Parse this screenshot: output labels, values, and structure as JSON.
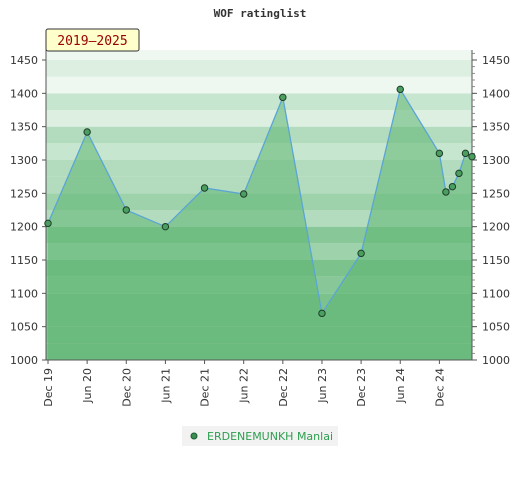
{
  "chart_data": {
    "type": "area",
    "title": "WOF ratinglist",
    "period_badge": "2019–2025",
    "x_tick_labels": [
      "Dec 19",
      "Jun 20",
      "Dec 20",
      "Jun 21",
      "Dec 21",
      "Jun 22",
      "Dec 22",
      "Jun 23",
      "Dec 23",
      "Jun 24",
      "Dec 24"
    ],
    "y_ticks": [
      1000,
      1050,
      1100,
      1150,
      1200,
      1250,
      1300,
      1350,
      1400,
      1450
    ],
    "ylim": [
      1000,
      1465
    ],
    "series": [
      {
        "name": "ERDENEMUNKH Manlai",
        "color": "#5aa5d6",
        "fill": "#7cc48e",
        "points": [
          {
            "x": "2019-12",
            "y": 1205
          },
          {
            "x": "2020-06",
            "y": 1342
          },
          {
            "x": "2020-12",
            "y": 1225
          },
          {
            "x": "2021-06",
            "y": 1200
          },
          {
            "x": "2021-12",
            "y": 1258
          },
          {
            "x": "2022-06",
            "y": 1249
          },
          {
            "x": "2022-12",
            "y": 1394
          },
          {
            "x": "2023-06",
            "y": 1070
          },
          {
            "x": "2023-12",
            "y": 1160
          },
          {
            "x": "2024-06",
            "y": 1406
          },
          {
            "x": "2024-12",
            "y": 1310
          },
          {
            "x": "2025-01",
            "y": 1252
          },
          {
            "x": "2025-02",
            "y": 1260
          },
          {
            "x": "2025-03",
            "y": 1280
          },
          {
            "x": "2025-04",
            "y": 1310
          },
          {
            "x": "2025-05",
            "y": 1305
          }
        ]
      }
    ],
    "grid": true,
    "legend_position": "bottom"
  }
}
